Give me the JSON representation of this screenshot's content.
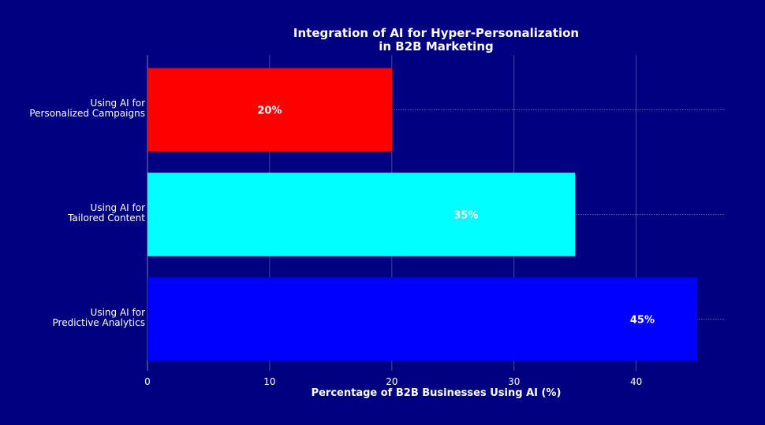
{
  "chart_data": {
    "type": "bar",
    "orientation": "horizontal",
    "title": "Integration of AI for Hyper-Personalization\nin B2B Marketing",
    "xlabel": "Percentage of B2B Businesses Using AI (%)",
    "ylabel": "",
    "xlim": [
      0,
      47.25
    ],
    "xticks": [
      0,
      10,
      20,
      30,
      40
    ],
    "grid": true,
    "categories": [
      "Using AI for\nPersonalized Campaigns",
      "Using AI for\nTailored Content",
      "Using AI for\nPredictive Analytics"
    ],
    "values": [
      20,
      35,
      45
    ],
    "data_labels": [
      "20%",
      "35%",
      "45%"
    ],
    "colors": [
      "#ff0000",
      "#00ffff",
      "#0000ff"
    ],
    "background": "#000080"
  }
}
